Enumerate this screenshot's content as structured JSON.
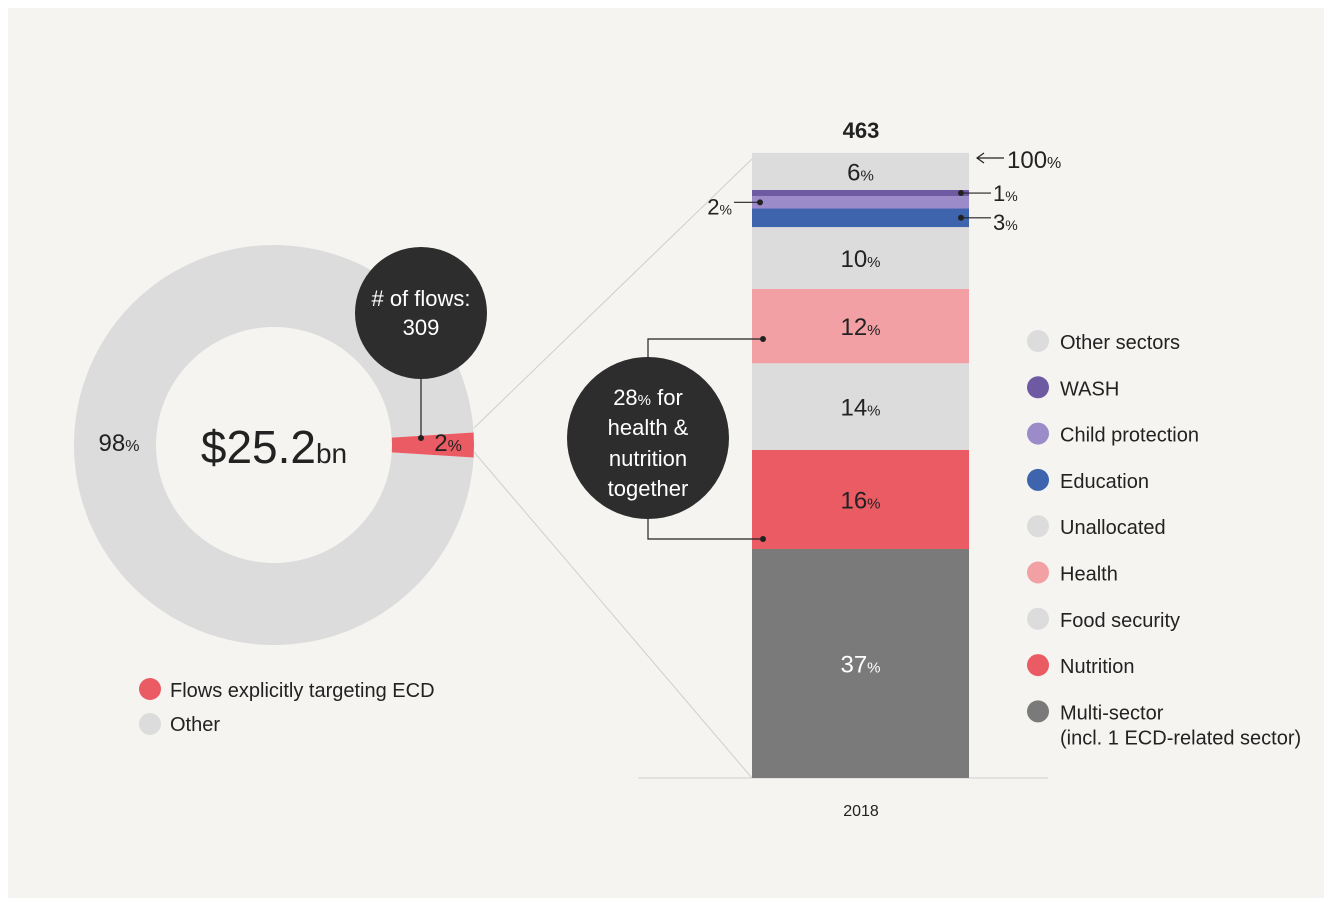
{
  "chart_data": [
    {
      "type": "pie",
      "center_label": {
        "value": "$25.2",
        "unit": "bn"
      },
      "slices": [
        {
          "name": "Flows explicitly targeting ECD",
          "value": 2,
          "label": "2",
          "unit": "%",
          "color": "#ea5b63"
        },
        {
          "name": "Other",
          "value": 98,
          "label": "98",
          "unit": "%",
          "color": "#dcdcdc"
        }
      ],
      "callout": {
        "line1": "# of flows:",
        "line2": "309"
      },
      "legend": {
        "placement": "bottom-left",
        "items": [
          "Flows explicitly targeting ECD",
          "Other"
        ]
      }
    },
    {
      "type": "bar",
      "stacked": true,
      "categories": [
        "2018"
      ],
      "total_label": "463",
      "top_label": {
        "value": "100",
        "unit": "%"
      },
      "ylim": [
        0,
        100
      ],
      "series": [
        {
          "name": "Multi-sector (incl. 1 ECD-related sector)",
          "value": 37,
          "label": "37",
          "color": "#7a7a7a",
          "label_color": "#ffffff"
        },
        {
          "name": "Nutrition",
          "value": 16,
          "label": "16",
          "color": "#ea5b63",
          "label_color": "#222222"
        },
        {
          "name": "Food security",
          "value": 14,
          "label": "14",
          "color": "#dcdcdc",
          "label_color": "#222222"
        },
        {
          "name": "Health",
          "value": 12,
          "label": "12",
          "color": "#f2a0a3",
          "label_color": "#222222"
        },
        {
          "name": "Unallocated",
          "value": 10,
          "label": "10",
          "color": "#dcdcdc",
          "label_color": "#222222"
        },
        {
          "name": "Education",
          "value": 3,
          "label": "3",
          "color": "#3d64ad",
          "label_color": "#222222",
          "outside": true
        },
        {
          "name": "Child protection",
          "value": 2,
          "label": "2",
          "color": "#9c8bc9",
          "label_color": "#222222",
          "outside": true
        },
        {
          "name": "WASH",
          "value": 1,
          "label": "1",
          "color": "#6e5aa3",
          "label_color": "#222222",
          "outside": true
        },
        {
          "name": "Other sectors",
          "value": 6,
          "label": "6",
          "color": "#dcdcdc",
          "label_color": "#222222"
        }
      ],
      "percent_unit": "%",
      "annotation": {
        "value": "28",
        "unit": "%",
        "line1_rest": " for",
        "line2": "health &",
        "line3": "nutrition",
        "line4": "together"
      },
      "legend": {
        "placement": "right",
        "items": [
          {
            "label": "Other sectors",
            "color": "#dcdcdc"
          },
          {
            "label": "WASH",
            "color": "#6e5aa3"
          },
          {
            "label": "Child protection",
            "color": "#9c8bc9"
          },
          {
            "label": "Education",
            "color": "#3d64ad"
          },
          {
            "label": "Unallocated",
            "color": "#dcdcdc"
          },
          {
            "label": "Health",
            "color": "#f2a0a3"
          },
          {
            "label": "Food security",
            "color": "#dcdcdc"
          },
          {
            "label": "Nutrition",
            "color": "#ea5b63"
          },
          {
            "label": "Multi-sector",
            "label2": "(incl. 1 ECD-related sector)",
            "color": "#7a7a7a"
          }
        ]
      }
    }
  ]
}
